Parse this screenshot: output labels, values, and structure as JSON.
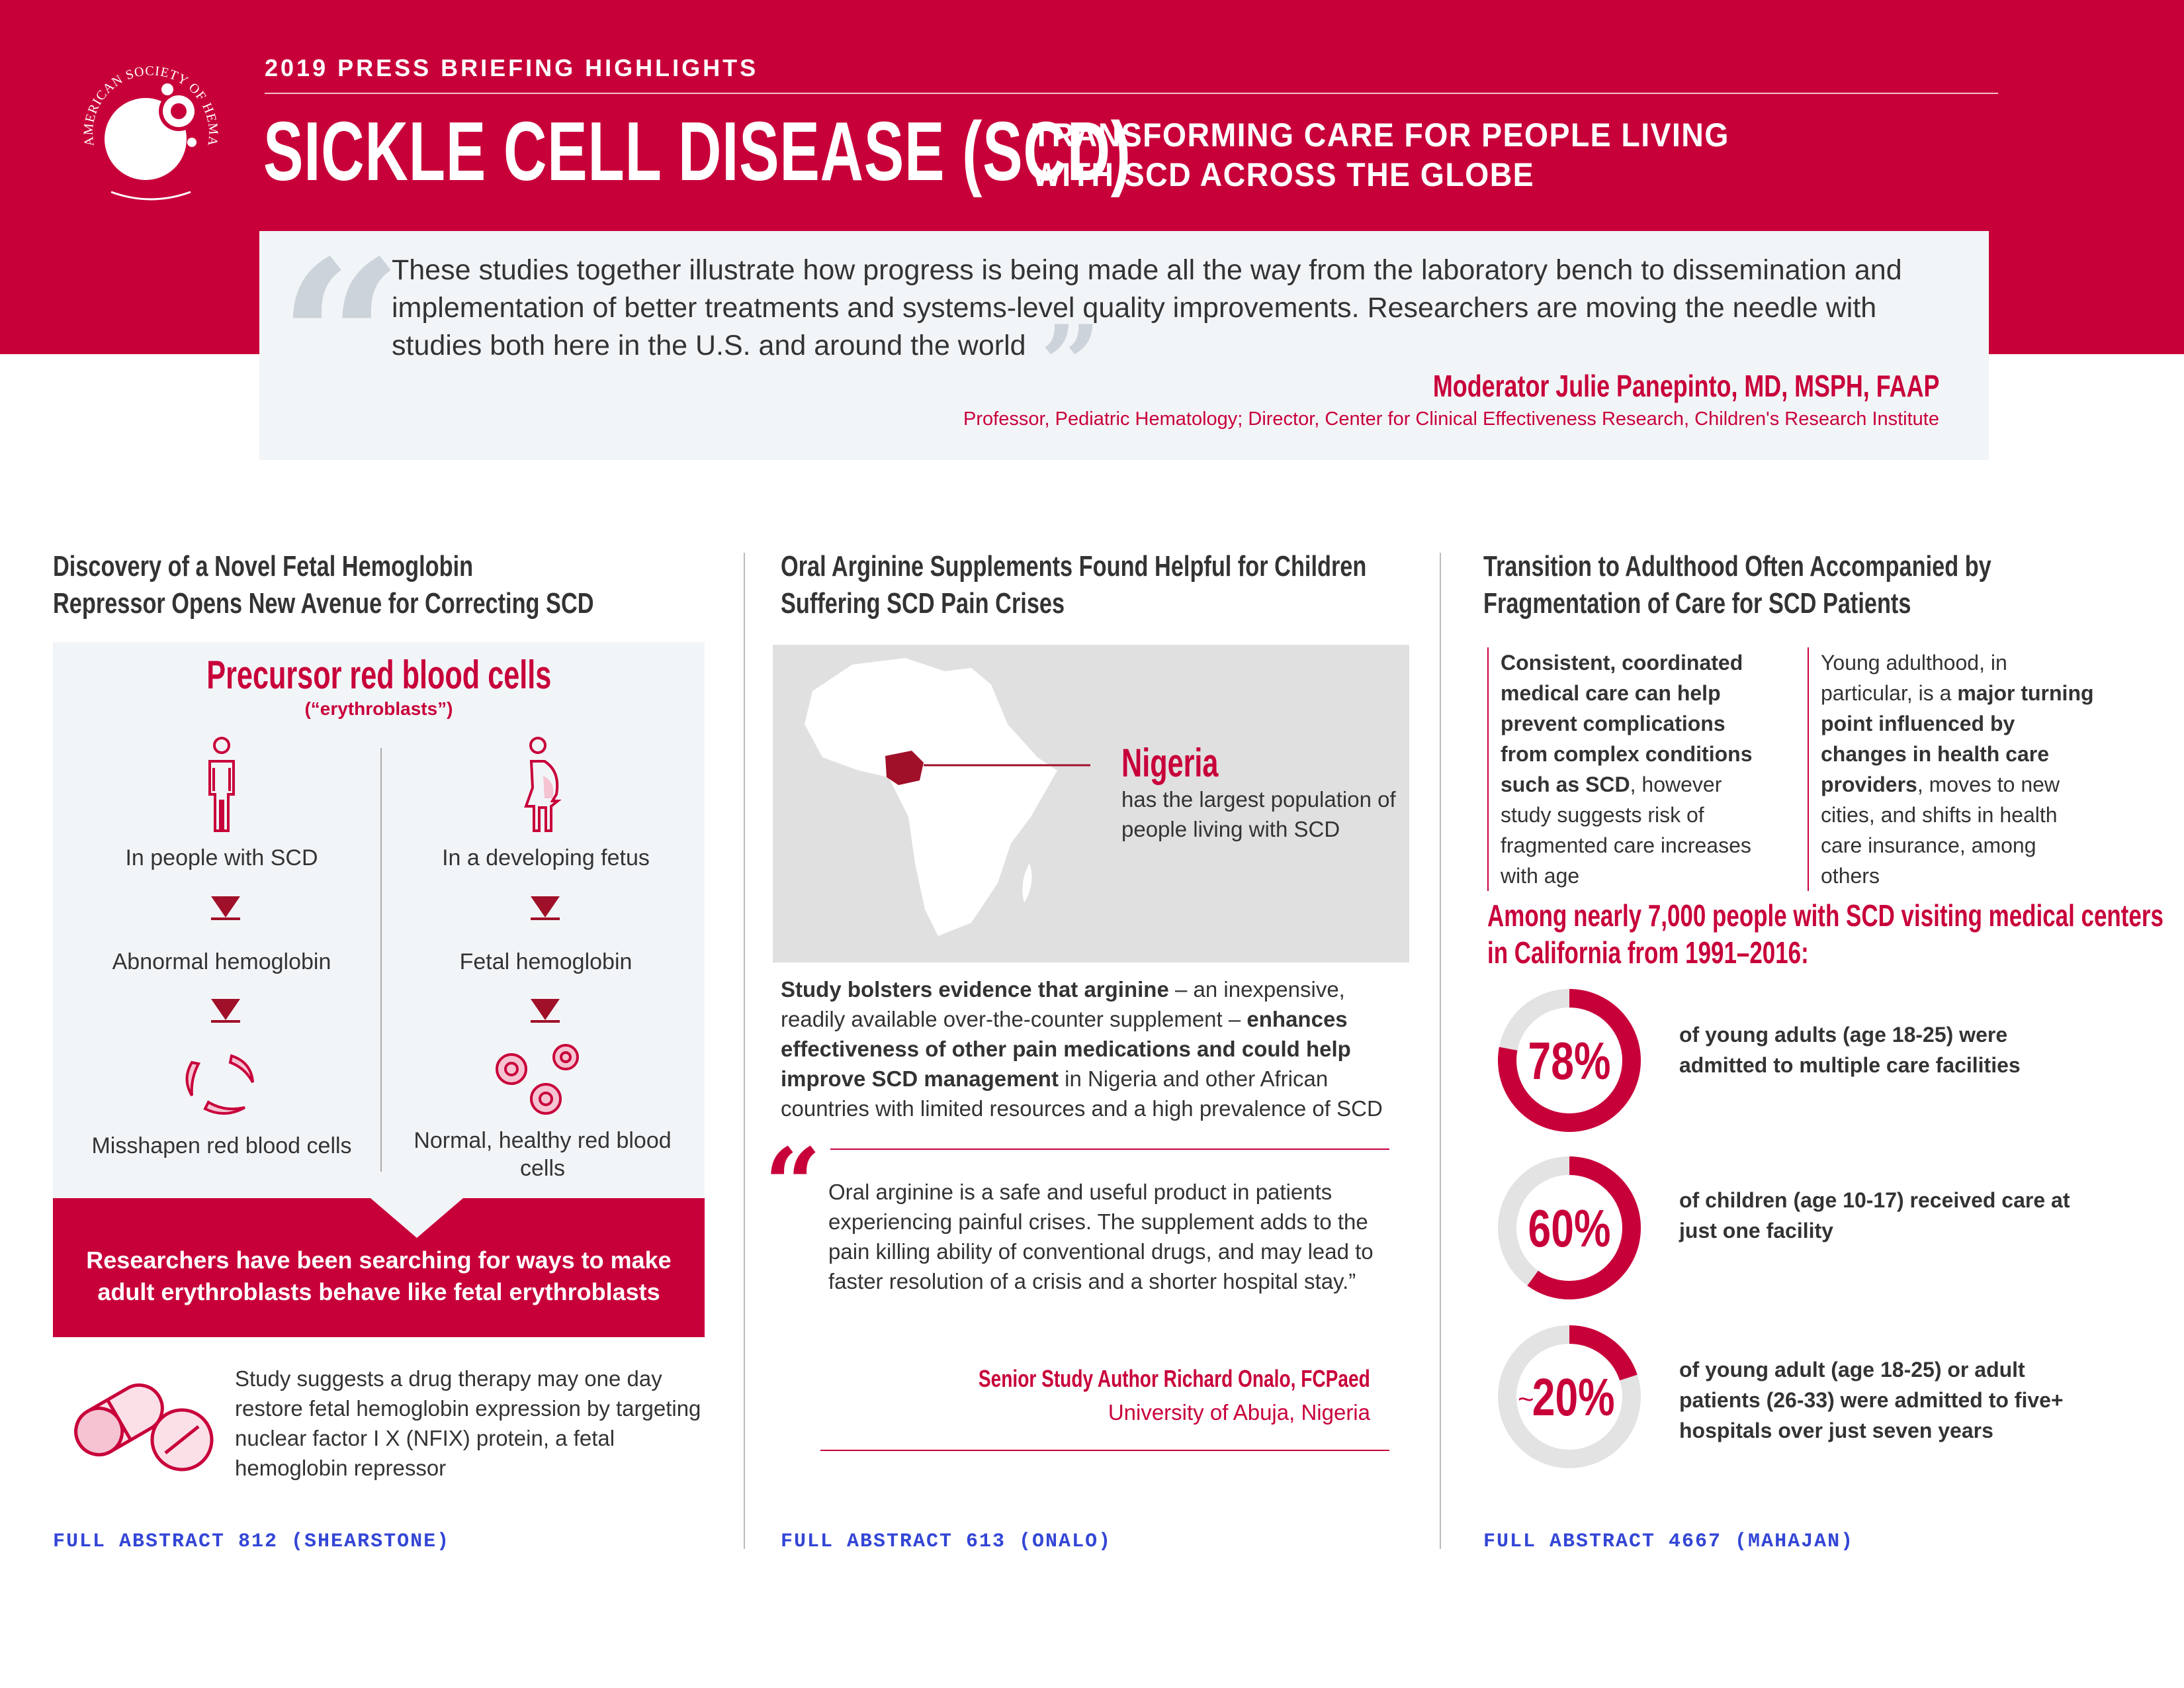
{
  "header": {
    "kicker": "2019 PRESS BRIEFING HIGHLIGHTS",
    "title": "SICKLE CELL DISEASE (SCD)",
    "subtitle_line1": "TRANSFORMING CARE FOR PEOPLE LIVING",
    "subtitle_line2": "WITH SCD ACROSS THE GLOBE",
    "logo_text": "AMERICAN SOCIETY OF HEMATOLOGY"
  },
  "quote": {
    "text": "These studies together illustrate how progress is being made all the way from the laboratory bench to dissemination and implementation of better treatments and systems-level quality improvements. Researchers are moving the needle with studies both here in the U.S. and around the world",
    "author": "Moderator Julie Panepinto, MD, MSPH, FAAP",
    "role": "Professor, Pediatric Hematology; Director, Center for Clinical Effectiveness Research, Children's Research Institute"
  },
  "col1": {
    "heading_line1": "Discovery of a Novel Fetal Hemoglobin",
    "heading_line2": "Repressor Opens New Avenue for Correcting SCD",
    "panel_title": "Precursor red blood cells",
    "panel_subtitle": "(“erythroblasts”)",
    "left": {
      "label1": "In people with SCD",
      "label2": "Abnormal hemoglobin",
      "label3": "Misshapen red blood cells"
    },
    "right": {
      "label1": "In a developing fetus",
      "label2": "Fetal hemoglobin",
      "label3": "Normal, healthy red blood cells"
    },
    "banner_text": "Researchers have been searching for ways to make adult erythroblasts behave like fetal erythroblasts",
    "study_text": "Study suggests a drug therapy may one day restore fetal hemoglobin expression by targeting nuclear factor I X (NFIX) protein, a fetal hemoglobin repressor",
    "link": "FULL ABSTRACT 812 (SHEARSTONE)"
  },
  "col2": {
    "heading_line1": "Oral Arginine Supplements Found Helpful for Children",
    "heading_line2": "Suffering SCD Pain Crises",
    "map_title": "Nigeria",
    "map_text": "has the largest population of people living with SCD",
    "para_b1": "Study bolsters evidence that arginine",
    "para_n1": " – an inexpensive, readily available over-the-counter supplement – ",
    "para_b2": "enhances effectiveness of other pain medications and could help improve SCD management",
    "para_n2": " in Nigeria and other African countries with limited resources and a high prevalence of SCD",
    "quote": "Oral arginine is a safe and useful product in patients experiencing painful crises. The supplement adds to the pain killing ability of conventional drugs, and may lead to faster resolution of a crisis and a shorter hospital stay.”",
    "author": "Senior Study Author Richard Onalo, FCPaed",
    "affiliation": "University of Abuja, Nigeria",
    "link": "FULL ABSTRACT 613 (ONALO)"
  },
  "col3": {
    "heading_line1": "Transition to Adulthood Often Accompanied by",
    "heading_line2": "Fragmentation of Care for SCD Patients",
    "left_b": "Consistent, coordinated medical care can help prevent complications from complex conditions such as SCD",
    "left_n": ", however study suggests risk of fragmented care increases with age",
    "right_n1": "Young adulthood, in particular, is a ",
    "right_b": "major turning point influenced by changes in health care providers",
    "right_n2": ", moves to new cities, and shifts in health care insurance, among others",
    "stat_head_line1": "Among nearly 7,000 people with SCD visiting medical centers",
    "stat_head_line2": "in California from 1991–2016:",
    "stats": [
      {
        "label": "78%",
        "prefix": "",
        "value": 78,
        "text": "of young adults (age 18-25) were admitted to multiple care facilities"
      },
      {
        "label": "60%",
        "prefix": "",
        "value": 60,
        "text": "of children (age 10-17) received care at just one facility"
      },
      {
        "label": "20%",
        "prefix": "~",
        "value": 20,
        "text": "of young adult (age 18-25) or adult patients (26-33) were admitted to five+ hospitals over just seven years"
      }
    ],
    "link": "FULL ABSTRACT 4667 (MAHAJAN)"
  },
  "colors": {
    "brand_red": "#c8003a",
    "link_blue": "#3346d6",
    "panel_gray": "#f2f5f8",
    "map_gray": "#e0e0e0",
    "track_gray": "#e3e3e3"
  }
}
